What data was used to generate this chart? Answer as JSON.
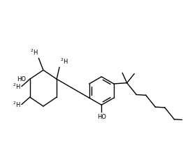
{
  "background_color": "#ffffff",
  "figsize": [
    2.62,
    2.29
  ],
  "dpi": 100,
  "line_width": 1.0,
  "font_size": 6.0
}
